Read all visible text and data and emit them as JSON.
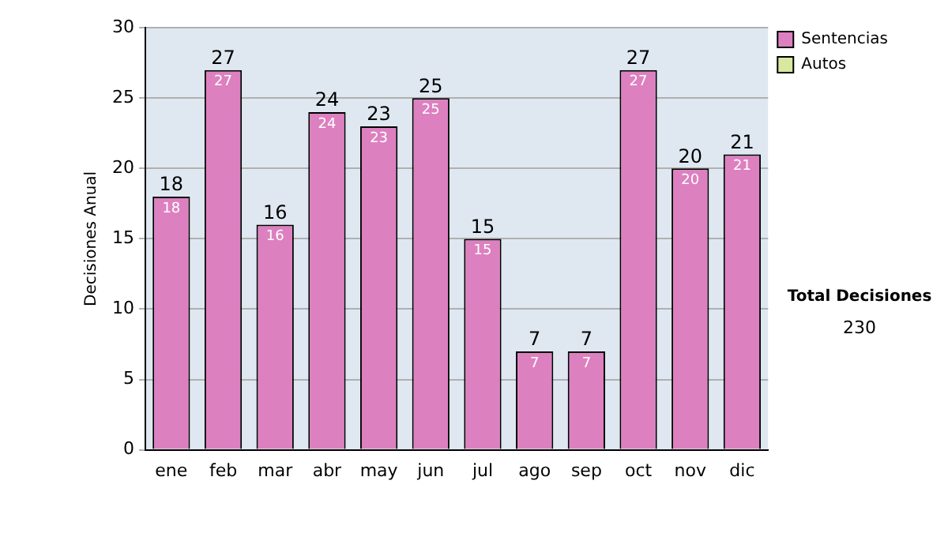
{
  "chart_data": {
    "type": "bar",
    "ylabel": "Decisiones Anual",
    "categories": [
      "ene",
      "feb",
      "mar",
      "abr",
      "may",
      "jun",
      "jul",
      "ago",
      "sep",
      "oct",
      "nov",
      "dic"
    ],
    "series": [
      {
        "name": "Sentencias",
        "color": "#dd80c0",
        "values": [
          18,
          27,
          16,
          24,
          23,
          25,
          15,
          7,
          7,
          27,
          20,
          21
        ]
      },
      {
        "name": "Autos",
        "color": "#d8e8a0",
        "values": [
          null,
          null,
          null,
          null,
          null,
          null,
          null,
          null,
          null,
          null,
          null,
          null
        ]
      }
    ],
    "stacked": true,
    "data_labels": true,
    "totals": [
      "18",
      "27",
      "16",
      "24",
      "23",
      "25",
      "15",
      "7",
      "7",
      "27",
      "20",
      "21"
    ],
    "ylim": [
      0,
      30
    ],
    "yticks": [
      0,
      5,
      10,
      15,
      20,
      25,
      30
    ],
    "grid": "y",
    "legend": "right",
    "annotations": [
      "Total Decisiones",
      "230"
    ]
  }
}
